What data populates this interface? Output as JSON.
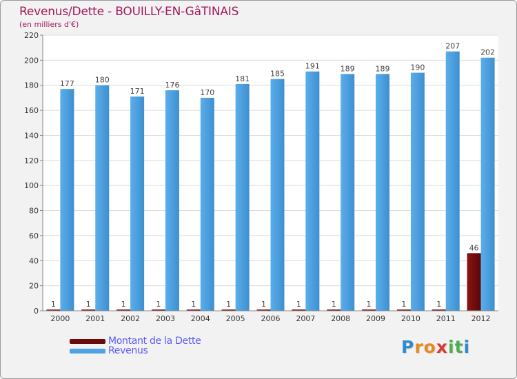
{
  "chart_data": {
    "type": "bar",
    "title": "Revenus/Dette - BOUILLY-EN-GâTINAIS",
    "subtitle": "(en milliers d'€)",
    "categories": [
      "2000",
      "2001",
      "2002",
      "2003",
      "2004",
      "2005",
      "2006",
      "2007",
      "2008",
      "2009",
      "2010",
      "2011",
      "2012"
    ],
    "series": [
      {
        "name": "Montant de la Dette",
        "color": "#6b0a0a",
        "values": [
          1,
          1,
          1,
          1,
          1,
          1,
          1,
          1,
          1,
          1,
          1,
          1,
          46
        ]
      },
      {
        "name": "Revenus",
        "color": "#4da3e4",
        "values": [
          177,
          180,
          171,
          176,
          170,
          181,
          185,
          191,
          189,
          189,
          190,
          207,
          202
        ]
      }
    ],
    "ylim": [
      0,
      220
    ],
    "yticks": [
      0,
      20,
      40,
      60,
      80,
      100,
      120,
      140,
      160,
      180,
      200,
      220
    ],
    "grid": true,
    "legend": "bottom-left"
  },
  "legend": {
    "debt_label": "Montant de la Dette",
    "revenue_label": "Revenus"
  },
  "logo": {
    "letters": [
      "P",
      "r",
      "o",
      "x",
      "i",
      "t",
      "i"
    ],
    "colors": [
      "#2e8bd0",
      "#e8891c",
      "#e8891c",
      "#d83a3a",
      "#4cae4c",
      "#4cae4c",
      "#2e8bd0"
    ]
  }
}
